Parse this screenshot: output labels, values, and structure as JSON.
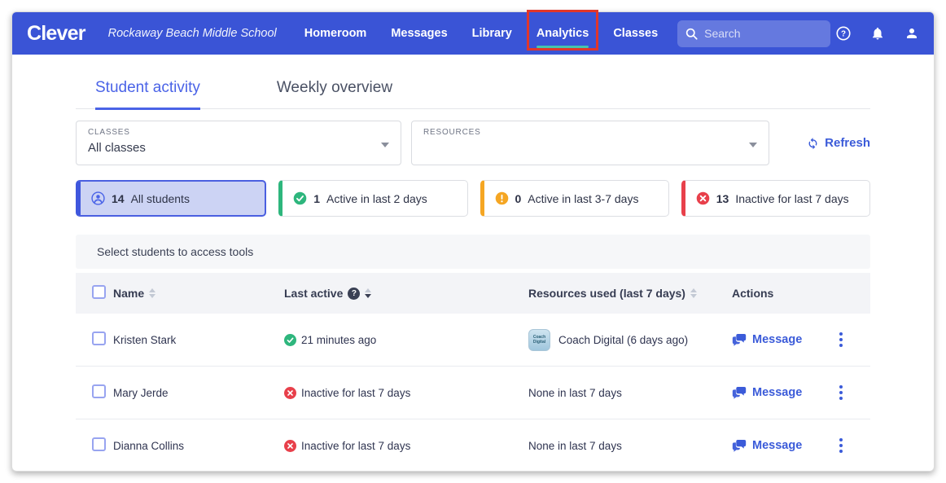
{
  "header": {
    "logo": "Clever",
    "school_name": "Rockaway Beach Middle School",
    "nav_items": [
      {
        "label": "Homeroom",
        "active": false,
        "annotated": false
      },
      {
        "label": "Messages",
        "active": false,
        "annotated": false
      },
      {
        "label": "Library",
        "active": false,
        "annotated": false
      },
      {
        "label": "Analytics",
        "active": true,
        "annotated": true
      },
      {
        "label": "Classes",
        "active": false,
        "annotated": false
      }
    ],
    "search": {
      "placeholder": "Search"
    },
    "icons": [
      "help",
      "notifications",
      "account"
    ],
    "colors": {
      "bar": "#3a54d6",
      "active_underline": "#46c3ae"
    }
  },
  "annotation": {
    "color": "#e0362c",
    "target": "Analytics"
  },
  "tabs": [
    {
      "label": "Student activity",
      "active": true
    },
    {
      "label": "Weekly overview",
      "active": false
    }
  ],
  "filters": {
    "classes": {
      "label": "CLASSES",
      "value": "All classes"
    },
    "resources": {
      "label": "RESOURCES",
      "value": ""
    },
    "refresh_label": "Refresh"
  },
  "summary_cards": [
    {
      "count": "14",
      "label": "All students",
      "icon": "person",
      "color": "#3f57dd",
      "selected": true
    },
    {
      "count": "1",
      "label": "Active in last 2 days",
      "icon": "check",
      "color": "#2eb67d",
      "selected": false
    },
    {
      "count": "0",
      "label": "Active in last 3-7 days",
      "icon": "warning",
      "color": "#f5a623",
      "selected": false
    },
    {
      "count": "13",
      "label": "Inactive for last 7 days",
      "icon": "error",
      "color": "#e8404b",
      "selected": false
    }
  ],
  "table": {
    "select_banner": "Select students to access tools",
    "columns": {
      "name": {
        "label": "Name"
      },
      "last_active": {
        "label": "Last active"
      },
      "resources": {
        "label": "Resources used (last 7 days)"
      },
      "actions": {
        "label": "Actions"
      }
    },
    "actions": {
      "message_label": "Message"
    },
    "rows": [
      {
        "name": "Kristen Stark",
        "activity_status": "active",
        "last_active": "21 minutes ago",
        "resource_app": "Coach Digital",
        "resources": "Coach Digital (6 days ago)"
      },
      {
        "name": "Mary Jerde",
        "activity_status": "inactive",
        "last_active": "Inactive for last 7 days",
        "resource_app": "",
        "resources": "None in last 7 days"
      },
      {
        "name": "Dianna Collins",
        "activity_status": "inactive",
        "last_active": "Inactive for last 7 days",
        "resource_app": "",
        "resources": "None in last 7 days"
      }
    ]
  }
}
